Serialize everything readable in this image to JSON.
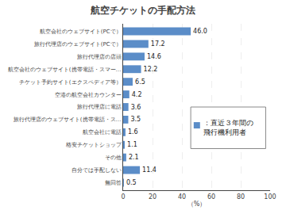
{
  "chart_data": {
    "type": "bar",
    "orientation": "horizontal",
    "title": "航空チケットの手配方法",
    "categories": [
      "無回答",
      "自分では手配しない",
      "その他",
      "格安チケットショップ",
      "航空会社に電話",
      "旅行代理店のウェブサイト(携帯電話・ス…",
      "旅行代理店に電話",
      "空港の航空会社カウンター",
      "チケット予約サイト(エクスペディア等）",
      "航空会社のウェブサイト(携帯電話・スマー…",
      "旅行代理店の店頭",
      "旅行代理店のウェブサイト(PCで）",
      "航空会社のウェブサイト(PCで）"
    ],
    "values": [
      0.5,
      11.4,
      2.1,
      1.1,
      1.6,
      3.5,
      3.6,
      4.2,
      6.5,
      12.2,
      14.6,
      17.2,
      46.0
    ],
    "value_labels": [
      "0.5",
      "11.4",
      "2.1",
      "1.1",
      "1.6",
      "3.5",
      "3.6",
      "4.2",
      "6.5",
      "12.2",
      "14.6",
      "17.2",
      "46.0"
    ],
    "data_labels": true,
    "color": "#5b8dc8",
    "xlim": [
      0,
      100
    ],
    "xticks": [
      0,
      20,
      40,
      60,
      80,
      100
    ],
    "xlabel": "（%）",
    "grid": true,
    "annotations": [
      "：直近３年間の",
      "飛行機利用者"
    ]
  }
}
